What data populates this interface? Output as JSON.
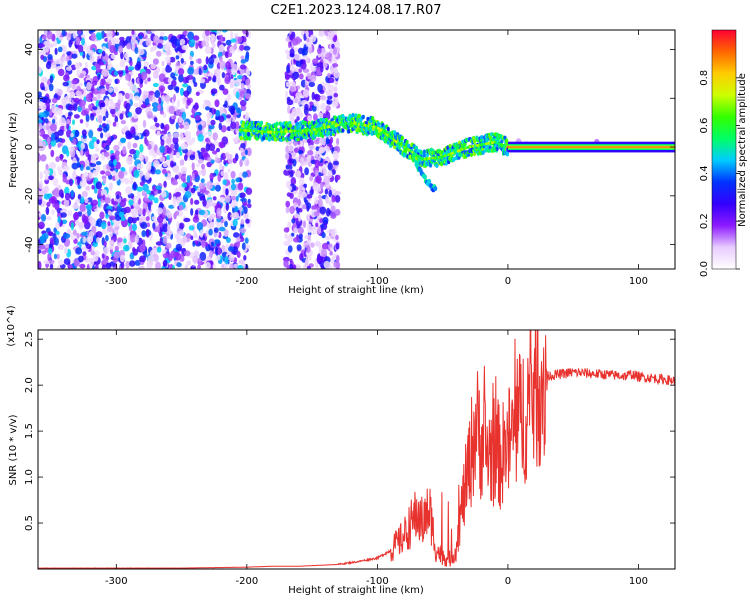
{
  "figure": {
    "title": "C2E1.2023.124.08.17.R07"
  },
  "chart_data": [
    {
      "type": "heatmap",
      "panel": "top",
      "xlabel": "Height of straight line (km)",
      "ylabel": "Frequency (Hz)",
      "xlim": [
        -360,
        128
      ],
      "ylim": [
        -50,
        48
      ],
      "x_ticks": [
        -300,
        -200,
        -100,
        0,
        100
      ],
      "y_ticks": [
        -40,
        -20,
        0,
        20,
        40
      ],
      "colorbar": {
        "label": "Normalized spectral amplitude",
        "range": [
          0,
          1
        ],
        "ticks": [
          0.0,
          0.2,
          0.4,
          0.6,
          0.8
        ],
        "tick_labels": [
          "0.0",
          "0.2",
          "0.4",
          "0.6",
          "0.8"
        ],
        "colormap": [
          "#ffffff",
          "#e8ccff",
          "#8c1aff",
          "#3300ff",
          "#0033ff",
          "#00ccff",
          "#00ff66",
          "#33ff00",
          "#ccff00",
          "#ffcc00",
          "#ff6600",
          "#ff0033"
        ]
      },
      "signal_track": [
        {
          "x": -205,
          "y": 7
        },
        {
          "x": -180,
          "y": 6
        },
        {
          "x": -150,
          "y": 7
        },
        {
          "x": -120,
          "y": 10
        },
        {
          "x": -100,
          "y": 8
        },
        {
          "x": -85,
          "y": 2
        },
        {
          "x": -65,
          "y": -5
        },
        {
          "x": -50,
          "y": -4
        },
        {
          "x": -30,
          "y": 0
        },
        {
          "x": -20,
          "y": 1
        },
        {
          "x": -10,
          "y": 2
        },
        {
          "x": 0,
          "y": 0
        },
        {
          "x": 128,
          "y": 0
        }
      ],
      "secondary_track": [
        {
          "x": -70,
          "y": -8
        },
        {
          "x": -62,
          "y": -14
        },
        {
          "x": -55,
          "y": -18
        }
      ],
      "noise_regions": [
        {
          "x_from": -360,
          "x_to": -198,
          "density": "high"
        },
        {
          "x_from": -170,
          "x_to": -130,
          "density": "medium"
        },
        {
          "x_from": 0,
          "x_to": 128,
          "density": "low"
        }
      ]
    },
    {
      "type": "line",
      "panel": "bottom",
      "xlabel": "Height of straight line (km)",
      "ylabel": "SNR (10 * v/v)",
      "y_multiplier": "(x10^4)",
      "xlim": [
        -360,
        128
      ],
      "ylim": [
        0,
        2.6
      ],
      "x_ticks": [
        -300,
        -200,
        -100,
        0,
        100
      ],
      "y_ticks": [
        0.5,
        1.0,
        1.5,
        2.0,
        2.5
      ],
      "color": "#e8322e",
      "series": [
        {
          "x": [
            -360,
            -300,
            -250,
            -200,
            -180,
            -160,
            -130,
            -115,
            -100,
            -90,
            -80,
            -70,
            -65,
            -60,
            -55,
            -50,
            -45,
            -40,
            -35,
            -30,
            -25,
            -20,
            -15,
            -10,
            -5,
            0,
            5,
            10,
            15,
            20,
            25,
            30,
            40,
            50,
            60,
            70,
            80,
            90,
            95,
            100,
            110,
            120,
            128
          ],
          "values": [
            0.01,
            0.01,
            0.01,
            0.02,
            0.03,
            0.03,
            0.05,
            0.08,
            0.12,
            0.2,
            0.35,
            0.6,
            0.5,
            0.65,
            0.2,
            0.15,
            0.1,
            0.2,
            0.7,
            1.1,
            1.55,
            1.4,
            1.25,
            1.3,
            1.2,
            1.35,
            1.5,
            1.65,
            1.8,
            1.95,
            2.05,
            2.1,
            2.12,
            2.14,
            2.13,
            2.12,
            2.11,
            2.1,
            2.12,
            2.09,
            2.08,
            2.06,
            2.05
          ]
        }
      ]
    }
  ]
}
